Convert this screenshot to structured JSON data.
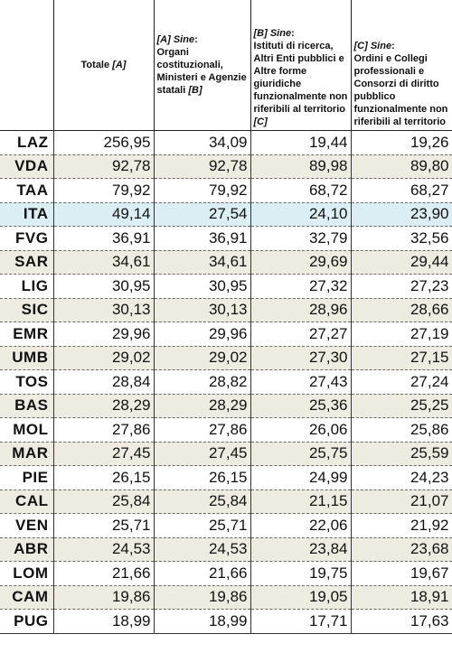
{
  "header": {
    "col_total": {
      "text": "Totale ",
      "tag": "[A]"
    },
    "col_b": {
      "tag": "[A] Sine",
      "colon": ":",
      "text": "Organi costituzionali, Ministeri e Agenzie statali ",
      "tag2": "[B]"
    },
    "col_c": {
      "tag": "[B] Sine",
      "colon": ":",
      "text": "Istituti di ricerca, Altri Enti pubblici e Altre forme giuridiche funzionalmente non riferibili al territorio ",
      "tag2": "[C]"
    },
    "col_d": {
      "tag": "[C] Sine",
      "colon": ":",
      "text": "Ordini e Collegi professionali e Consorzi di diritto pubblico funzionalmente non riferibili al territorio"
    }
  },
  "rows": [
    {
      "code": "LAZ",
      "v": [
        "256,95",
        "34,09",
        "19,44",
        "19,26"
      ],
      "style": "plain"
    },
    {
      "code": "VDA",
      "v": [
        "92,78",
        "92,78",
        "89,98",
        "89,80"
      ],
      "style": "alt"
    },
    {
      "code": "TAA",
      "v": [
        "79,92",
        "79,92",
        "68,72",
        "68,27"
      ],
      "style": "plain"
    },
    {
      "code": "ITA",
      "v": [
        "49,14",
        "27,54",
        "24,10",
        "23,90"
      ],
      "style": "hl"
    },
    {
      "code": "FVG",
      "v": [
        "36,91",
        "36,91",
        "32,79",
        "32,56"
      ],
      "style": "plain"
    },
    {
      "code": "SAR",
      "v": [
        "34,61",
        "34,61",
        "29,69",
        "29,44"
      ],
      "style": "alt"
    },
    {
      "code": "LIG",
      "v": [
        "30,95",
        "30,95",
        "27,32",
        "27,23"
      ],
      "style": "plain"
    },
    {
      "code": "SIC",
      "v": [
        "30,13",
        "30,13",
        "28,96",
        "28,66"
      ],
      "style": "alt"
    },
    {
      "code": "EMR",
      "v": [
        "29,96",
        "29,96",
        "27,27",
        "27,19"
      ],
      "style": "plain"
    },
    {
      "code": "UMB",
      "v": [
        "29,02",
        "29,02",
        "27,30",
        "27,15"
      ],
      "style": "alt"
    },
    {
      "code": "TOS",
      "v": [
        "28,84",
        "28,82",
        "27,43",
        "27,24"
      ],
      "style": "plain"
    },
    {
      "code": "BAS",
      "v": [
        "28,29",
        "28,29",
        "25,36",
        "25,25"
      ],
      "style": "alt"
    },
    {
      "code": "MOL",
      "v": [
        "27,86",
        "27,86",
        "26,06",
        "25,86"
      ],
      "style": "plain"
    },
    {
      "code": "MAR",
      "v": [
        "27,45",
        "27,45",
        "25,75",
        "25,59"
      ],
      "style": "alt"
    },
    {
      "code": "PIE",
      "v": [
        "26,15",
        "26,15",
        "24,99",
        "24,23"
      ],
      "style": "plain"
    },
    {
      "code": "CAL",
      "v": [
        "25,84",
        "25,84",
        "21,15",
        "21,07"
      ],
      "style": "alt"
    },
    {
      "code": "VEN",
      "v": [
        "25,71",
        "25,71",
        "22,06",
        "21,92"
      ],
      "style": "plain"
    },
    {
      "code": "ABR",
      "v": [
        "24,53",
        "24,53",
        "23,84",
        "23,68"
      ],
      "style": "alt"
    },
    {
      "code": "LOM",
      "v": [
        "21,66",
        "21,66",
        "19,75",
        "19,67"
      ],
      "style": "plain"
    },
    {
      "code": "CAM",
      "v": [
        "19,86",
        "19,86",
        "19,05",
        "18,91"
      ],
      "style": "alt"
    },
    {
      "code": "PUG",
      "v": [
        "18,99",
        "18,99",
        "17,71",
        "17,63"
      ],
      "style": "plain"
    }
  ]
}
